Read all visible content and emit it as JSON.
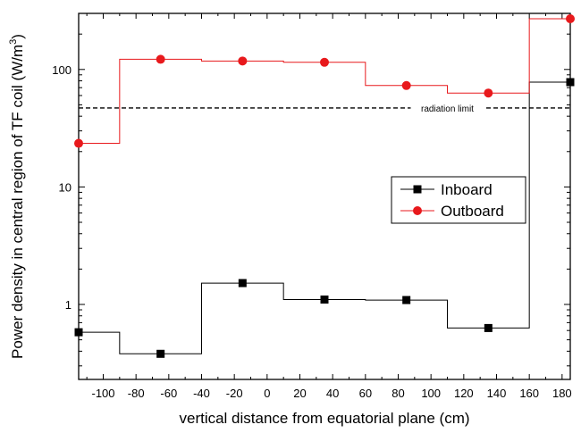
{
  "chart_data": {
    "type": "line",
    "title": "",
    "xlabel": "vertical distance from equatorial plane (cm)",
    "ylabel": "Power density in central region of TF coil (W/m",
    "ylabel_sup": "3",
    "ylabel_close": ")",
    "xlim": [
      -115,
      185
    ],
    "ylim": [
      0.23,
      300
    ],
    "yscale": "log",
    "x_ticks": [
      -100,
      -80,
      -60,
      -40,
      -20,
      0,
      20,
      40,
      60,
      80,
      100,
      120,
      140,
      160,
      180
    ],
    "y_ticks": [
      1,
      10,
      100
    ],
    "grid": false,
    "legend_position": "right-center",
    "series": [
      {
        "name": "Inboard",
        "color": "#000000",
        "marker": "square",
        "steps": [
          {
            "x0": -115,
            "x1": -90,
            "y": 0.58
          },
          {
            "x0": -90,
            "x1": -40,
            "y": 0.38
          },
          {
            "x0": -40,
            "x1": 10,
            "y": 1.52
          },
          {
            "x0": 10,
            "x1": 60,
            "y": 1.1
          },
          {
            "x0": 60,
            "x1": 110,
            "y": 1.09
          },
          {
            "x0": 110,
            "x1": 160,
            "y": 0.63
          },
          {
            "x0": 160,
            "x1": 185,
            "y": 78
          }
        ],
        "points": [
          {
            "x": -115,
            "y": 0.58
          },
          {
            "x": -65,
            "y": 0.38
          },
          {
            "x": -15,
            "y": 1.52
          },
          {
            "x": 35,
            "y": 1.1
          },
          {
            "x": 85,
            "y": 1.09
          },
          {
            "x": 135,
            "y": 0.63
          },
          {
            "x": 185,
            "y": 78
          }
        ]
      },
      {
        "name": "Outboard",
        "color": "#e8191c",
        "marker": "circle",
        "steps": [
          {
            "x0": -115,
            "x1": -90,
            "y": 23.5
          },
          {
            "x0": -90,
            "x1": -40,
            "y": 122
          },
          {
            "x0": -40,
            "x1": 10,
            "y": 118
          },
          {
            "x0": 10,
            "x1": 60,
            "y": 115
          },
          {
            "x0": 60,
            "x1": 110,
            "y": 73
          },
          {
            "x0": 110,
            "x1": 160,
            "y": 63
          },
          {
            "x0": 160,
            "x1": 185,
            "y": 270
          }
        ],
        "points": [
          {
            "x": -115,
            "y": 23.5
          },
          {
            "x": -65,
            "y": 122
          },
          {
            "x": -15,
            "y": 118
          },
          {
            "x": 35,
            "y": 115
          },
          {
            "x": 85,
            "y": 73
          },
          {
            "x": 135,
            "y": 63
          },
          {
            "x": 185,
            "y": 270
          }
        ]
      }
    ],
    "reference_lines": [
      {
        "label": "radiation limit",
        "y": 47,
        "style": "dashed",
        "color": "#000000"
      }
    ]
  }
}
